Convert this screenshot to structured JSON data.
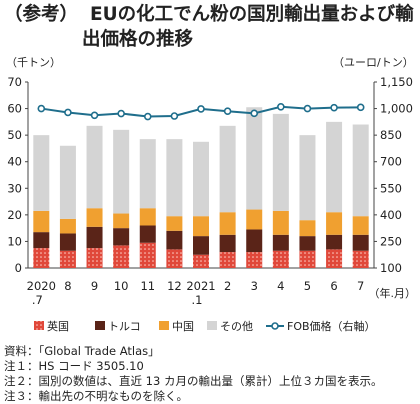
{
  "title": {
    "tag": "（参考）",
    "line1": "EUの化工でん粉の国別輸出量および輸",
    "line2": "出価格の推移"
  },
  "notes": [
    "資料：「Global Trade Atlas」",
    "注１：HS コード 3505.10",
    "注２：国別の数値は、直近 13 カ月の輸出量（累計）上位３カ国を表示。",
    "注３：輸出先の不明なものを除く。"
  ],
  "chart_data": {
    "type": "bar",
    "stacked": true,
    "left_unit": "（千トン）",
    "right_unit": "（ユーロ/トン）",
    "x_unit": "（年.月）",
    "categories": [
      [
        "2020",
        ".7"
      ],
      [
        "8",
        ""
      ],
      [
        "9",
        ""
      ],
      [
        "10",
        ""
      ],
      [
        "11",
        ""
      ],
      [
        "12",
        ""
      ],
      [
        "2021",
        ".1"
      ],
      [
        "2",
        ""
      ],
      [
        "3",
        ""
      ],
      [
        "4",
        ""
      ],
      [
        "5",
        ""
      ],
      [
        "6",
        ""
      ],
      [
        "7",
        ""
      ]
    ],
    "ylim": [
      0,
      70
    ],
    "yticks": [
      0,
      10,
      20,
      30,
      40,
      50,
      60,
      70
    ],
    "y2lim": [
      100,
      1150
    ],
    "y2ticks": [
      100,
      250,
      400,
      550,
      700,
      850,
      1000,
      1150
    ],
    "grid": false,
    "series": [
      {
        "name": "英国",
        "color": "#e0483a",
        "pattern": "dots",
        "values": [
          7.5,
          6.5,
          7.5,
          8.5,
          9.5,
          7.0,
          5.0,
          6.0,
          6.0,
          6.5,
          6.5,
          7.0,
          6.5
        ]
      },
      {
        "name": "トルコ",
        "color": "#5a2418",
        "values": [
          6.0,
          6.5,
          8.0,
          6.5,
          6.5,
          7.0,
          7.0,
          6.5,
          8.5,
          6.0,
          5.5,
          5.5,
          6.0
        ]
      },
      {
        "name": "中国",
        "color": "#f0a030",
        "values": [
          8.0,
          5.5,
          7.0,
          5.5,
          6.5,
          5.5,
          7.5,
          8.5,
          7.5,
          9.0,
          6.0,
          8.5,
          7.0
        ]
      },
      {
        "name": "その他",
        "color": "#d4d4d4",
        "values": [
          28.5,
          27.5,
          31.0,
          31.5,
          26.0,
          29.0,
          28.0,
          32.5,
          38.5,
          36.5,
          32.0,
          34.0,
          34.5
        ]
      }
    ],
    "line": {
      "name": "FOB価格（右軸）",
      "color": "#1f6e8c",
      "axis": "right",
      "values": [
        1000,
        978,
        962,
        972,
        955,
        958,
        998,
        985,
        973,
        1010,
        1000,
        1005,
        1007
      ]
    }
  }
}
